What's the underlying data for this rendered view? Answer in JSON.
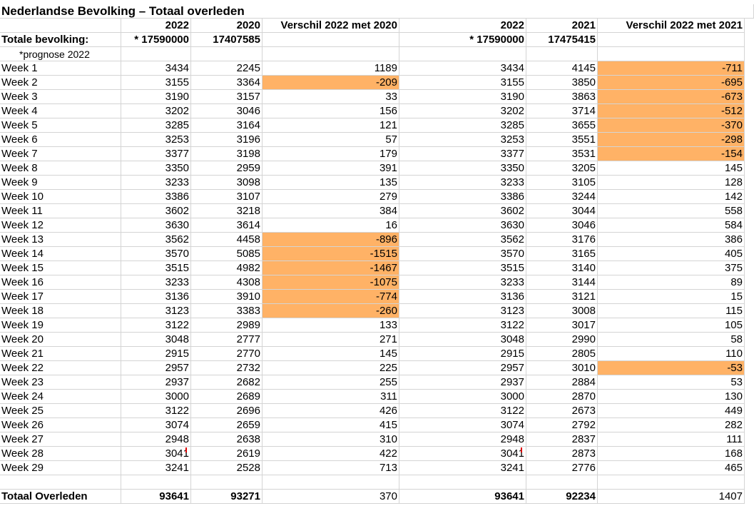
{
  "title": "Nederlandse Bevolking – Totaal overleden",
  "header": {
    "y2022_a": "2022",
    "y2020": "2020",
    "diff_2020": "Verschil 2022 met 2020",
    "y2022_b": "2022",
    "y2021": "2021",
    "diff_2021": "Verschil 2022 met 2021"
  },
  "population": {
    "label": "Totale bevolking:",
    "p2022_a": "* 17590000",
    "p2020": "17407585",
    "p2022_b": "* 17590000",
    "p2021": "17475415"
  },
  "note": "*prognose 2022",
  "weeks": [
    {
      "label": "Week 1",
      "v2022": "3434",
      "v2020": "2245",
      "d2020": "1189",
      "v2021": "4145",
      "d2021": "-711",
      "hl2020": false,
      "hl2021": true
    },
    {
      "label": "Week 2",
      "v2022": "3155",
      "v2020": "3364",
      "d2020": "-209",
      "v2021": "3850",
      "d2021": "-695",
      "hl2020": true,
      "hl2021": true
    },
    {
      "label": "Week 3",
      "v2022": "3190",
      "v2020": "3157",
      "d2020": "33",
      "v2021": "3863",
      "d2021": "-673",
      "hl2020": false,
      "hl2021": true
    },
    {
      "label": "Week 4",
      "v2022": "3202",
      "v2020": "3046",
      "d2020": "156",
      "v2021": "3714",
      "d2021": "-512",
      "hl2020": false,
      "hl2021": true
    },
    {
      "label": "Week 5",
      "v2022": "3285",
      "v2020": "3164",
      "d2020": "121",
      "v2021": "3655",
      "d2021": "-370",
      "hl2020": false,
      "hl2021": true
    },
    {
      "label": "Week 6",
      "v2022": "3253",
      "v2020": "3196",
      "d2020": "57",
      "v2021": "3551",
      "d2021": "-298",
      "hl2020": false,
      "hl2021": true
    },
    {
      "label": "Week 7",
      "v2022": "3377",
      "v2020": "3198",
      "d2020": "179",
      "v2021": "3531",
      "d2021": "-154",
      "hl2020": false,
      "hl2021": true
    },
    {
      "label": "Week 8",
      "v2022": "3350",
      "v2020": "2959",
      "d2020": "391",
      "v2021": "3205",
      "d2021": "145",
      "hl2020": false,
      "hl2021": false
    },
    {
      "label": "Week 9",
      "v2022": "3233",
      "v2020": "3098",
      "d2020": "135",
      "v2021": "3105",
      "d2021": "128",
      "hl2020": false,
      "hl2021": false
    },
    {
      "label": "Week 10",
      "v2022": "3386",
      "v2020": "3107",
      "d2020": "279",
      "v2021": "3244",
      "d2021": "142",
      "hl2020": false,
      "hl2021": false
    },
    {
      "label": "Week 11",
      "v2022": "3602",
      "v2020": "3218",
      "d2020": "384",
      "v2021": "3044",
      "d2021": "558",
      "hl2020": false,
      "hl2021": false
    },
    {
      "label": "Week 12",
      "v2022": "3630",
      "v2020": "3614",
      "d2020": "16",
      "v2021": "3046",
      "d2021": "584",
      "hl2020": false,
      "hl2021": false
    },
    {
      "label": "Week 13",
      "v2022": "3562",
      "v2020": "4458",
      "d2020": "-896",
      "v2021": "3176",
      "d2021": "386",
      "hl2020": true,
      "hl2021": false
    },
    {
      "label": "Week 14",
      "v2022": "3570",
      "v2020": "5085",
      "d2020": "-1515",
      "v2021": "3165",
      "d2021": "405",
      "hl2020": true,
      "hl2021": false
    },
    {
      "label": "Week 15",
      "v2022": "3515",
      "v2020": "4982",
      "d2020": "-1467",
      "v2021": "3140",
      "d2021": "375",
      "hl2020": true,
      "hl2021": false
    },
    {
      "label": "Week 16",
      "v2022": "3233",
      "v2020": "4308",
      "d2020": "-1075",
      "v2021": "3144",
      "d2021": "89",
      "hl2020": true,
      "hl2021": false
    },
    {
      "label": "Week 17",
      "v2022": "3136",
      "v2020": "3910",
      "d2020": "-774",
      "v2021": "3121",
      "d2021": "15",
      "hl2020": true,
      "hl2021": false
    },
    {
      "label": "Week 18",
      "v2022": "3123",
      "v2020": "3383",
      "d2020": "-260",
      "v2021": "3008",
      "d2021": "115",
      "hl2020": true,
      "hl2021": false
    },
    {
      "label": "Week 19",
      "v2022": "3122",
      "v2020": "2989",
      "d2020": "133",
      "v2021": "3017",
      "d2021": "105",
      "hl2020": false,
      "hl2021": false
    },
    {
      "label": "Week 20",
      "v2022": "3048",
      "v2020": "2777",
      "d2020": "271",
      "v2021": "2990",
      "d2021": "58",
      "hl2020": false,
      "hl2021": false
    },
    {
      "label": "Week 21",
      "v2022": "2915",
      "v2020": "2770",
      "d2020": "145",
      "v2021": "2805",
      "d2021": "110",
      "hl2020": false,
      "hl2021": false
    },
    {
      "label": "Week 22",
      "v2022": "2957",
      "v2020": "2732",
      "d2020": "225",
      "v2021": "3010",
      "d2021": "-53",
      "hl2020": false,
      "hl2021": true
    },
    {
      "label": "Week 23",
      "v2022": "2937",
      "v2020": "2682",
      "d2020": "255",
      "v2021": "2884",
      "d2021": "53",
      "hl2020": false,
      "hl2021": false
    },
    {
      "label": "Week 24",
      "v2022": "3000",
      "v2020": "2689",
      "d2020": "311",
      "v2021": "2870",
      "d2021": "130",
      "hl2020": false,
      "hl2021": false
    },
    {
      "label": "Week 25",
      "v2022": "3122",
      "v2020": "2696",
      "d2020": "426",
      "v2021": "2673",
      "d2021": "449",
      "hl2020": false,
      "hl2021": false
    },
    {
      "label": "Week 26",
      "v2022": "3074",
      "v2020": "2659",
      "d2020": "415",
      "v2021": "2792",
      "d2021": "282",
      "hl2020": false,
      "hl2021": false
    },
    {
      "label": "Week 27",
      "v2022": "2948",
      "v2020": "2638",
      "d2020": "310",
      "v2021": "2837",
      "d2021": "111",
      "hl2020": false,
      "hl2021": false
    },
    {
      "label": "Week 28",
      "v2022": "3041",
      "v2020": "2619",
      "d2020": "422",
      "v2021": "2873",
      "d2021": "168",
      "hl2020": false,
      "hl2021": false,
      "comment": true
    },
    {
      "label": "Week 29",
      "v2022": "3241",
      "v2020": "2528",
      "d2020": "713",
      "v2021": "2776",
      "d2021": "465",
      "hl2020": false,
      "hl2021": false
    }
  ],
  "total": {
    "label": "Totaal Overleden",
    "t2022_a": "93641",
    "t2020": "93271",
    "d2020": "370",
    "t2022_b": "93641",
    "t2021": "92234",
    "d2021": "1407"
  },
  "colors": {
    "highlight": "#ffb266",
    "gridline": "#d4d4d4",
    "comment_marker": "#e00000"
  }
}
